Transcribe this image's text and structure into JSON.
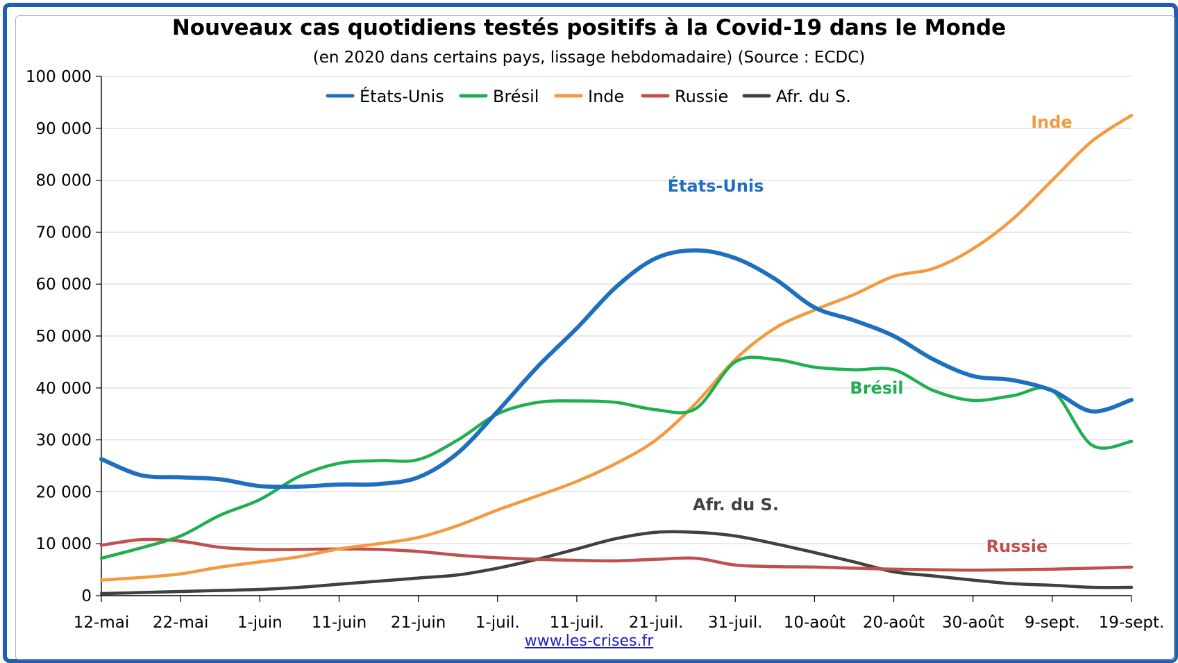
{
  "chart_data": {
    "type": "line",
    "title": "Nouveaux cas quotidiens testés positifs à la Covid-19 dans le Monde",
    "subtitle": "(en 2020 dans certains pays, lissage hebdomadaire) (Source : ECDC)",
    "source": "www.les-crises.fr",
    "x_start": "2020-05-12",
    "x_tick_labels": [
      "12-mai",
      "22-mai",
      "1-juin",
      "11-juin",
      "21-juin",
      "1-juil.",
      "11-juil.",
      "21-juil.",
      "31-juil.",
      "10-août",
      "20-août",
      "30-août",
      "9-sept.",
      "19-sept."
    ],
    "y_tick_labels": [
      "0",
      "10 000",
      "20 000",
      "30 000",
      "40 000",
      "50 000",
      "60 000",
      "70 000",
      "80 000",
      "90 000",
      "100 000"
    ],
    "ylim": [
      0,
      100000
    ],
    "xlim": [
      "2020-05-12",
      "2020-09-19"
    ],
    "grid": "horizontal",
    "legend_position": "top-center",
    "x": [
      "12-mai",
      "17-mai",
      "22-mai",
      "27-mai",
      "1-juin",
      "6-juin",
      "11-juin",
      "16-juin",
      "21-juin",
      "26-juin",
      "1-juil.",
      "6-juil.",
      "11-juil.",
      "16-juil.",
      "21-juil.",
      "26-juil.",
      "31-juil.",
      "5-août",
      "10-août",
      "15-août",
      "20-août",
      "25-août",
      "30-août",
      "4-sept.",
      "9-sept.",
      "14-sept.",
      "19-sept."
    ],
    "series": [
      {
        "name": "États-Unis",
        "color": "#1f6fbf",
        "label": "États-Unis",
        "values": [
          26300,
          23200,
          22800,
          22400,
          21100,
          21000,
          21400,
          21500,
          22800,
          27500,
          35500,
          44000,
          51500,
          59500,
          65000,
          66500,
          65000,
          61000,
          55500,
          53000,
          50000,
          45500,
          42300,
          41500,
          39500,
          35500,
          37700
        ]
      },
      {
        "name": "Brésil",
        "color": "#1faf4f",
        "label": "Brésil",
        "values": [
          7200,
          9200,
          11500,
          15500,
          18500,
          23000,
          25500,
          26000,
          26200,
          30000,
          35000,
          37200,
          37500,
          37200,
          35800,
          36000,
          45000,
          45500,
          44000,
          43500,
          43500,
          39500,
          37600,
          38500,
          39500,
          29000,
          29700
        ]
      },
      {
        "name": "Inde",
        "color": "#f39a3f",
        "label": "Inde",
        "values": [
          3000,
          3500,
          4200,
          5500,
          6500,
          7500,
          9000,
          10000,
          11200,
          13500,
          16500,
          19200,
          22000,
          25500,
          30000,
          37000,
          45500,
          51500,
          55000,
          58000,
          61500,
          63000,
          66800,
          72500,
          80000,
          87500,
          92500
        ]
      },
      {
        "name": "Russie",
        "color": "#c0504d",
        "label": "Russie",
        "values": [
          9700,
          10800,
          10500,
          9300,
          8900,
          8900,
          9000,
          8900,
          8500,
          7800,
          7300,
          7000,
          6800,
          6700,
          7000,
          7200,
          5900,
          5600,
          5500,
          5300,
          5100,
          5000,
          4900,
          5000,
          5100,
          5300,
          5500
        ]
      },
      {
        "name": "Afr. du S.",
        "color": "#404040",
        "label": "Afr. du S.",
        "values": [
          400,
          600,
          800,
          1000,
          1200,
          1600,
          2200,
          2800,
          3400,
          4000,
          5300,
          7000,
          9000,
          11000,
          12200,
          12200,
          11500,
          10000,
          8300,
          6500,
          4600,
          3800,
          3000,
          2300,
          2000,
          1600,
          1600
        ]
      }
    ],
    "annotations": [
      {
        "text": "Inde",
        "color": "#f39a3f"
      },
      {
        "text": "États-Unis",
        "color": "#1f6fbf"
      },
      {
        "text": "Brésil",
        "color": "#1faf4f"
      },
      {
        "text": "Afr. du S.",
        "color": "#404040"
      },
      {
        "text": "Russie",
        "color": "#c0504d"
      }
    ]
  }
}
